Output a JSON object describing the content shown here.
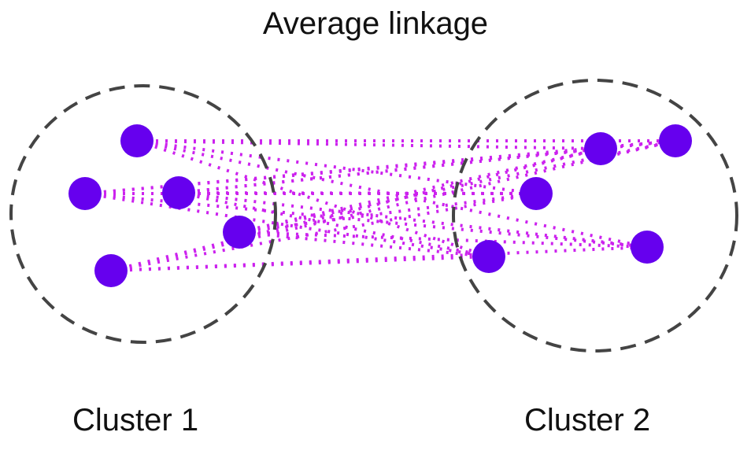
{
  "title": "Average linkage",
  "clusters": [
    {
      "label": "Cluster 1"
    },
    {
      "label": "Cluster 2"
    }
  ],
  "colors": {
    "point": "#6600ee",
    "link": "#cc22ee",
    "boundary": "#444444"
  }
}
